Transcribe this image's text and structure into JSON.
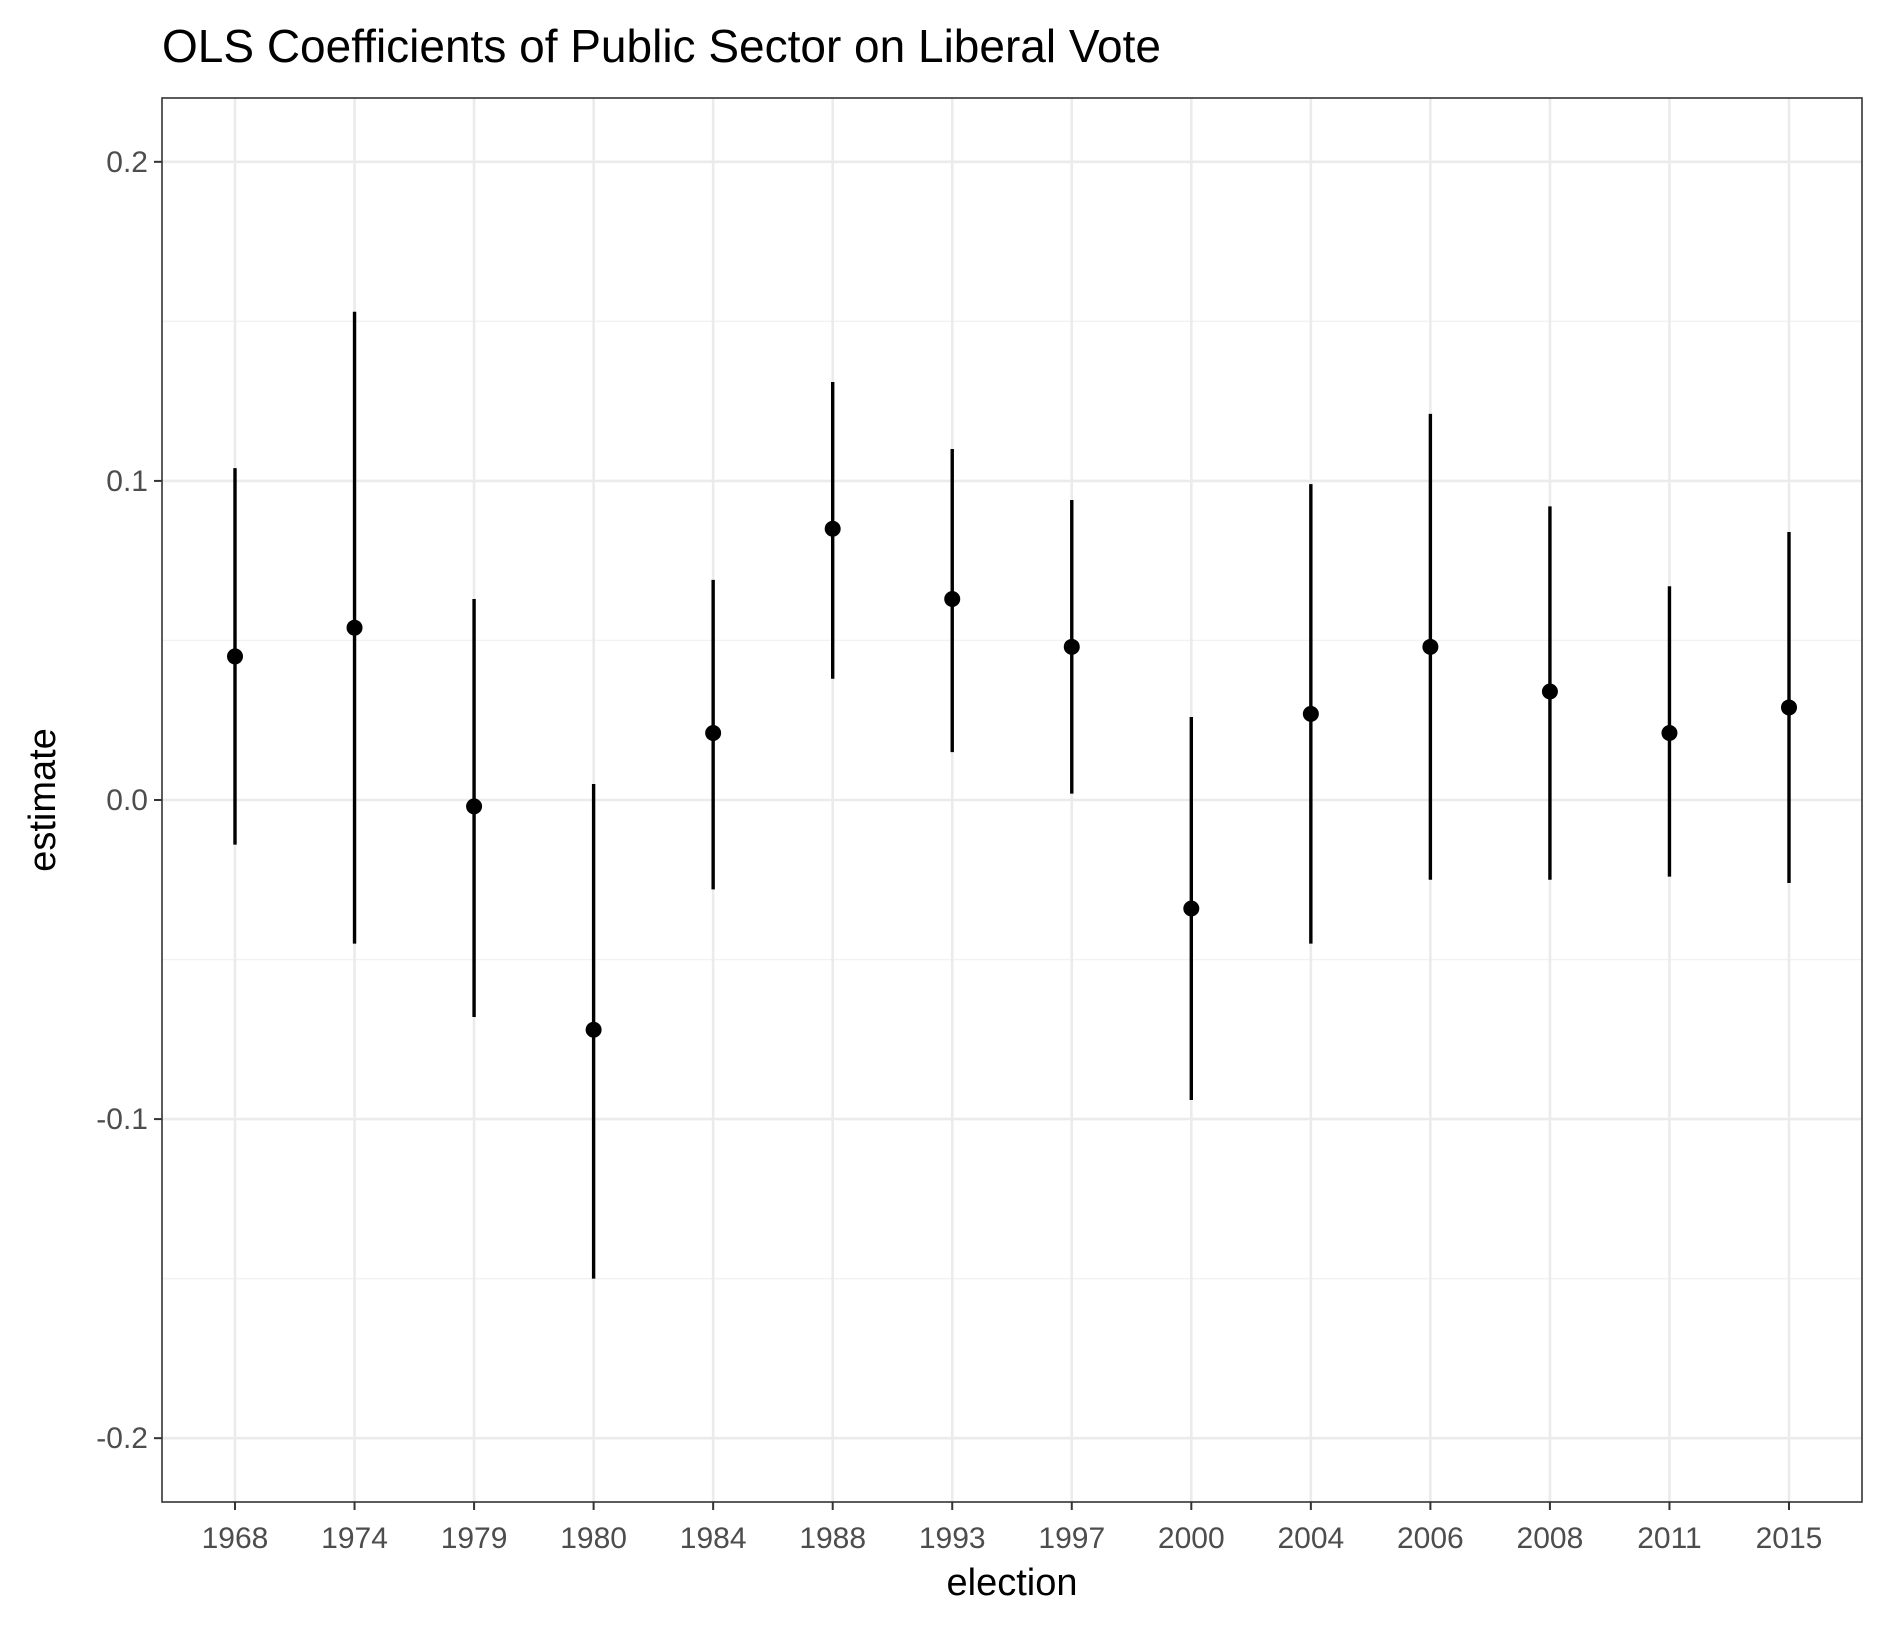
{
  "chart_data": {
    "type": "pointrange",
    "title": "OLS Coefficients of Public Sector on Liberal Vote",
    "xlabel": "election",
    "ylabel": "estimate",
    "categories": [
      "1968",
      "1974",
      "1979",
      "1980",
      "1984",
      "1988",
      "1993",
      "1997",
      "2000",
      "2004",
      "2006",
      "2008",
      "2011",
      "2015"
    ],
    "estimate": [
      0.045,
      0.054,
      -0.002,
      -0.072,
      0.021,
      0.085,
      0.063,
      0.048,
      -0.034,
      0.027,
      0.048,
      0.034,
      0.021,
      0.029
    ],
    "lower": [
      -0.014,
      -0.045,
      -0.068,
      -0.15,
      -0.028,
      0.038,
      0.015,
      0.002,
      -0.094,
      -0.045,
      -0.025,
      -0.025,
      -0.024,
      -0.026
    ],
    "upper": [
      0.104,
      0.153,
      0.063,
      0.005,
      0.069,
      0.131,
      0.11,
      0.094,
      0.026,
      0.099,
      0.121,
      0.092,
      0.067,
      0.084
    ],
    "ylim": [
      -0.22,
      0.22
    ],
    "yticks": [
      -0.2,
      -0.1,
      0.0,
      0.1,
      0.2
    ],
    "ytick_labels": [
      "-0.2",
      "-0.1",
      "0.0",
      "0.1",
      "0.2"
    ],
    "grid": true,
    "colors": {
      "point": "#000000",
      "panel_border": "#333333",
      "grid_major": "#ebebeb",
      "grid_minor": "#f2f2f2",
      "tick_label": "#4d4d4d"
    }
  }
}
